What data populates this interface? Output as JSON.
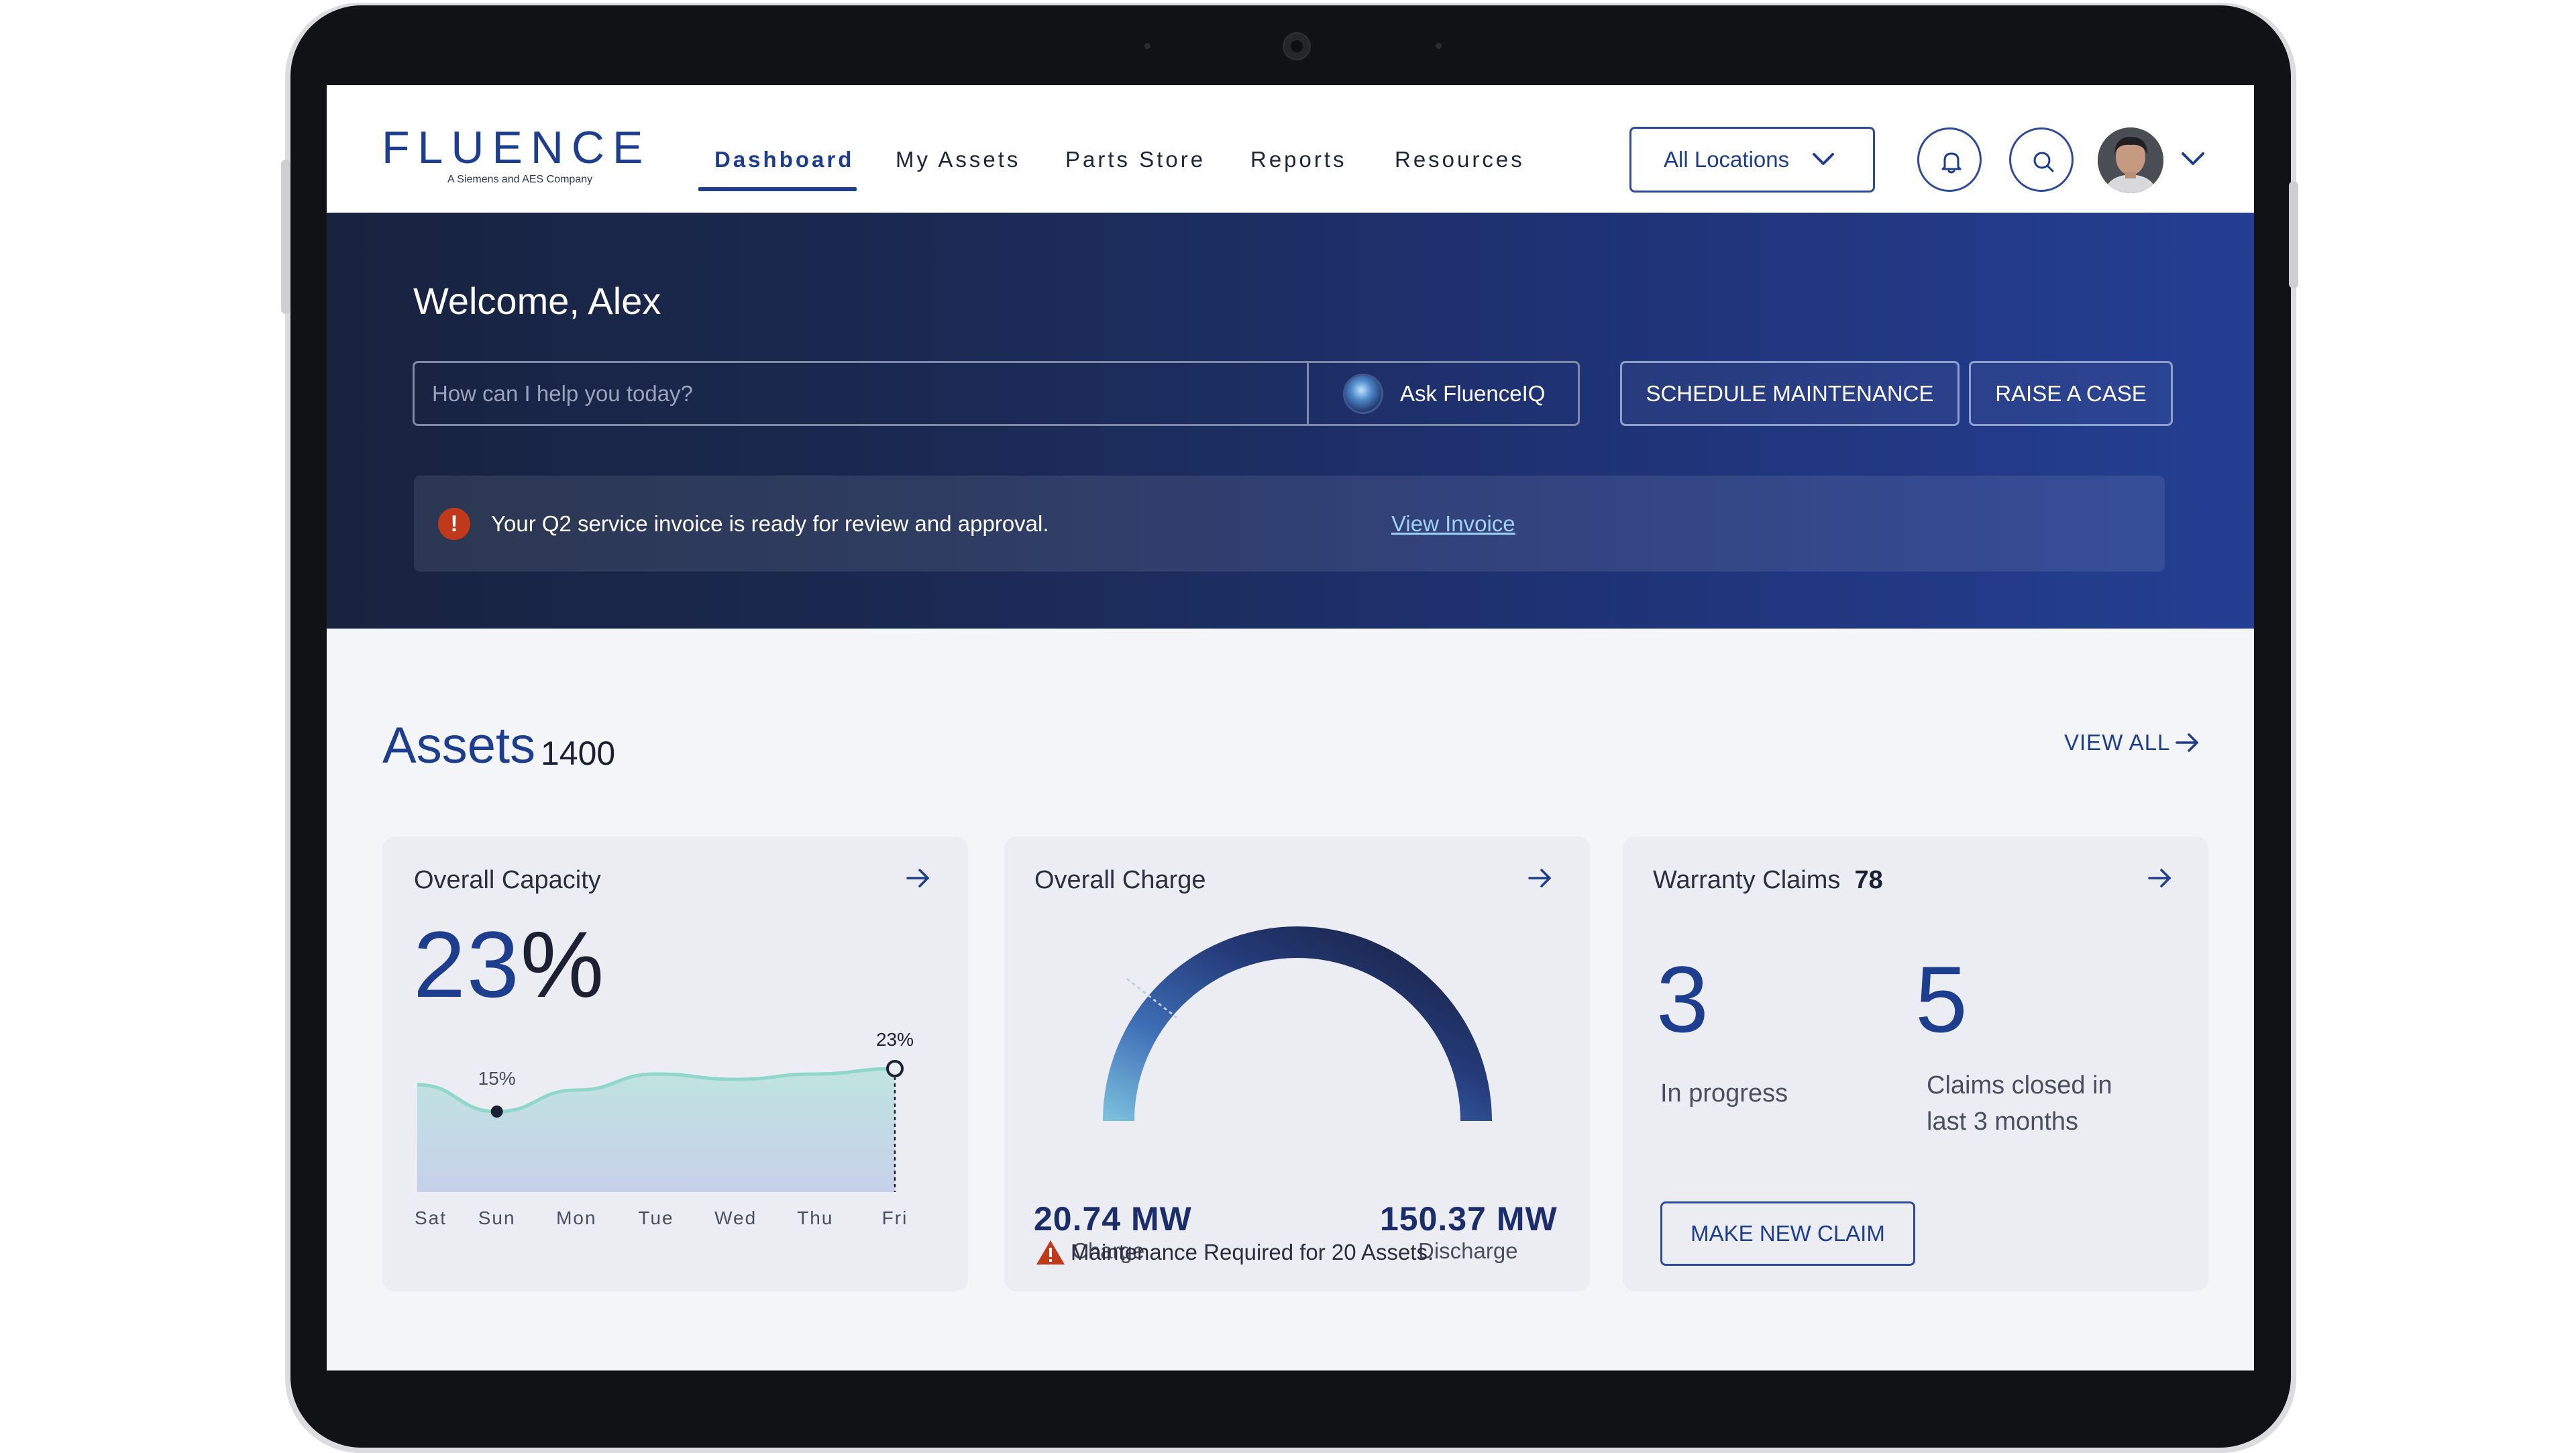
{
  "brand": {
    "name": "FLUENCE",
    "tagline": "A Siemens and AES Company",
    "accent": "#1d3d8f"
  },
  "nav": {
    "items": [
      {
        "label": "Dashboard",
        "active": true
      },
      {
        "label": "My Assets",
        "active": false
      },
      {
        "label": "Parts Store",
        "active": false
      },
      {
        "label": "Reports",
        "active": false
      },
      {
        "label": "Resources",
        "active": false
      }
    ]
  },
  "header": {
    "location_select": "All Locations",
    "icons": [
      "bell-icon",
      "search-icon",
      "avatar",
      "chevron-down-icon"
    ]
  },
  "hero": {
    "welcome": "Welcome, Alex",
    "search_placeholder": "How can I help you today?",
    "ask_label": "Ask FluenceIQ",
    "schedule_label": "SCHEDULE MAINTENANCE",
    "raise_label": "RAISE A CASE",
    "alert_text": "Your Q2 service invoice is ready for review and approval.",
    "alert_link": "View Invoice",
    "alert_icon": "!"
  },
  "assets": {
    "title": "Assets",
    "count": "1400",
    "view_all": "VIEW ALL"
  },
  "capacity": {
    "title": "Overall Capacity",
    "value": "23",
    "unit": "%",
    "min_label": "15%",
    "max_label": "23%",
    "chart_data": {
      "type": "area",
      "categories": [
        "Sat",
        "Sun",
        "Mon",
        "Tue",
        "Wed",
        "Thu",
        "Fri"
      ],
      "values": [
        20,
        15,
        19,
        22,
        21,
        22,
        23
      ],
      "ylim": [
        0,
        30
      ]
    }
  },
  "charge": {
    "title": "Overall Charge",
    "gauge_fraction": 0.12,
    "charge_value": "20.74 MW",
    "charge_label": "Charge",
    "discharge_value": "150.37 MW",
    "discharge_label": "Discharge",
    "maintenance_text": "Maintenance Required for 20 Assets."
  },
  "warranty": {
    "title": "Warranty Claims",
    "count": "78",
    "in_progress_value": "3",
    "in_progress_label": "In progress",
    "closed_value": "5",
    "closed_label": "Claims closed in last 3 months",
    "new_claim_label": "MAKE NEW CLAIM"
  }
}
